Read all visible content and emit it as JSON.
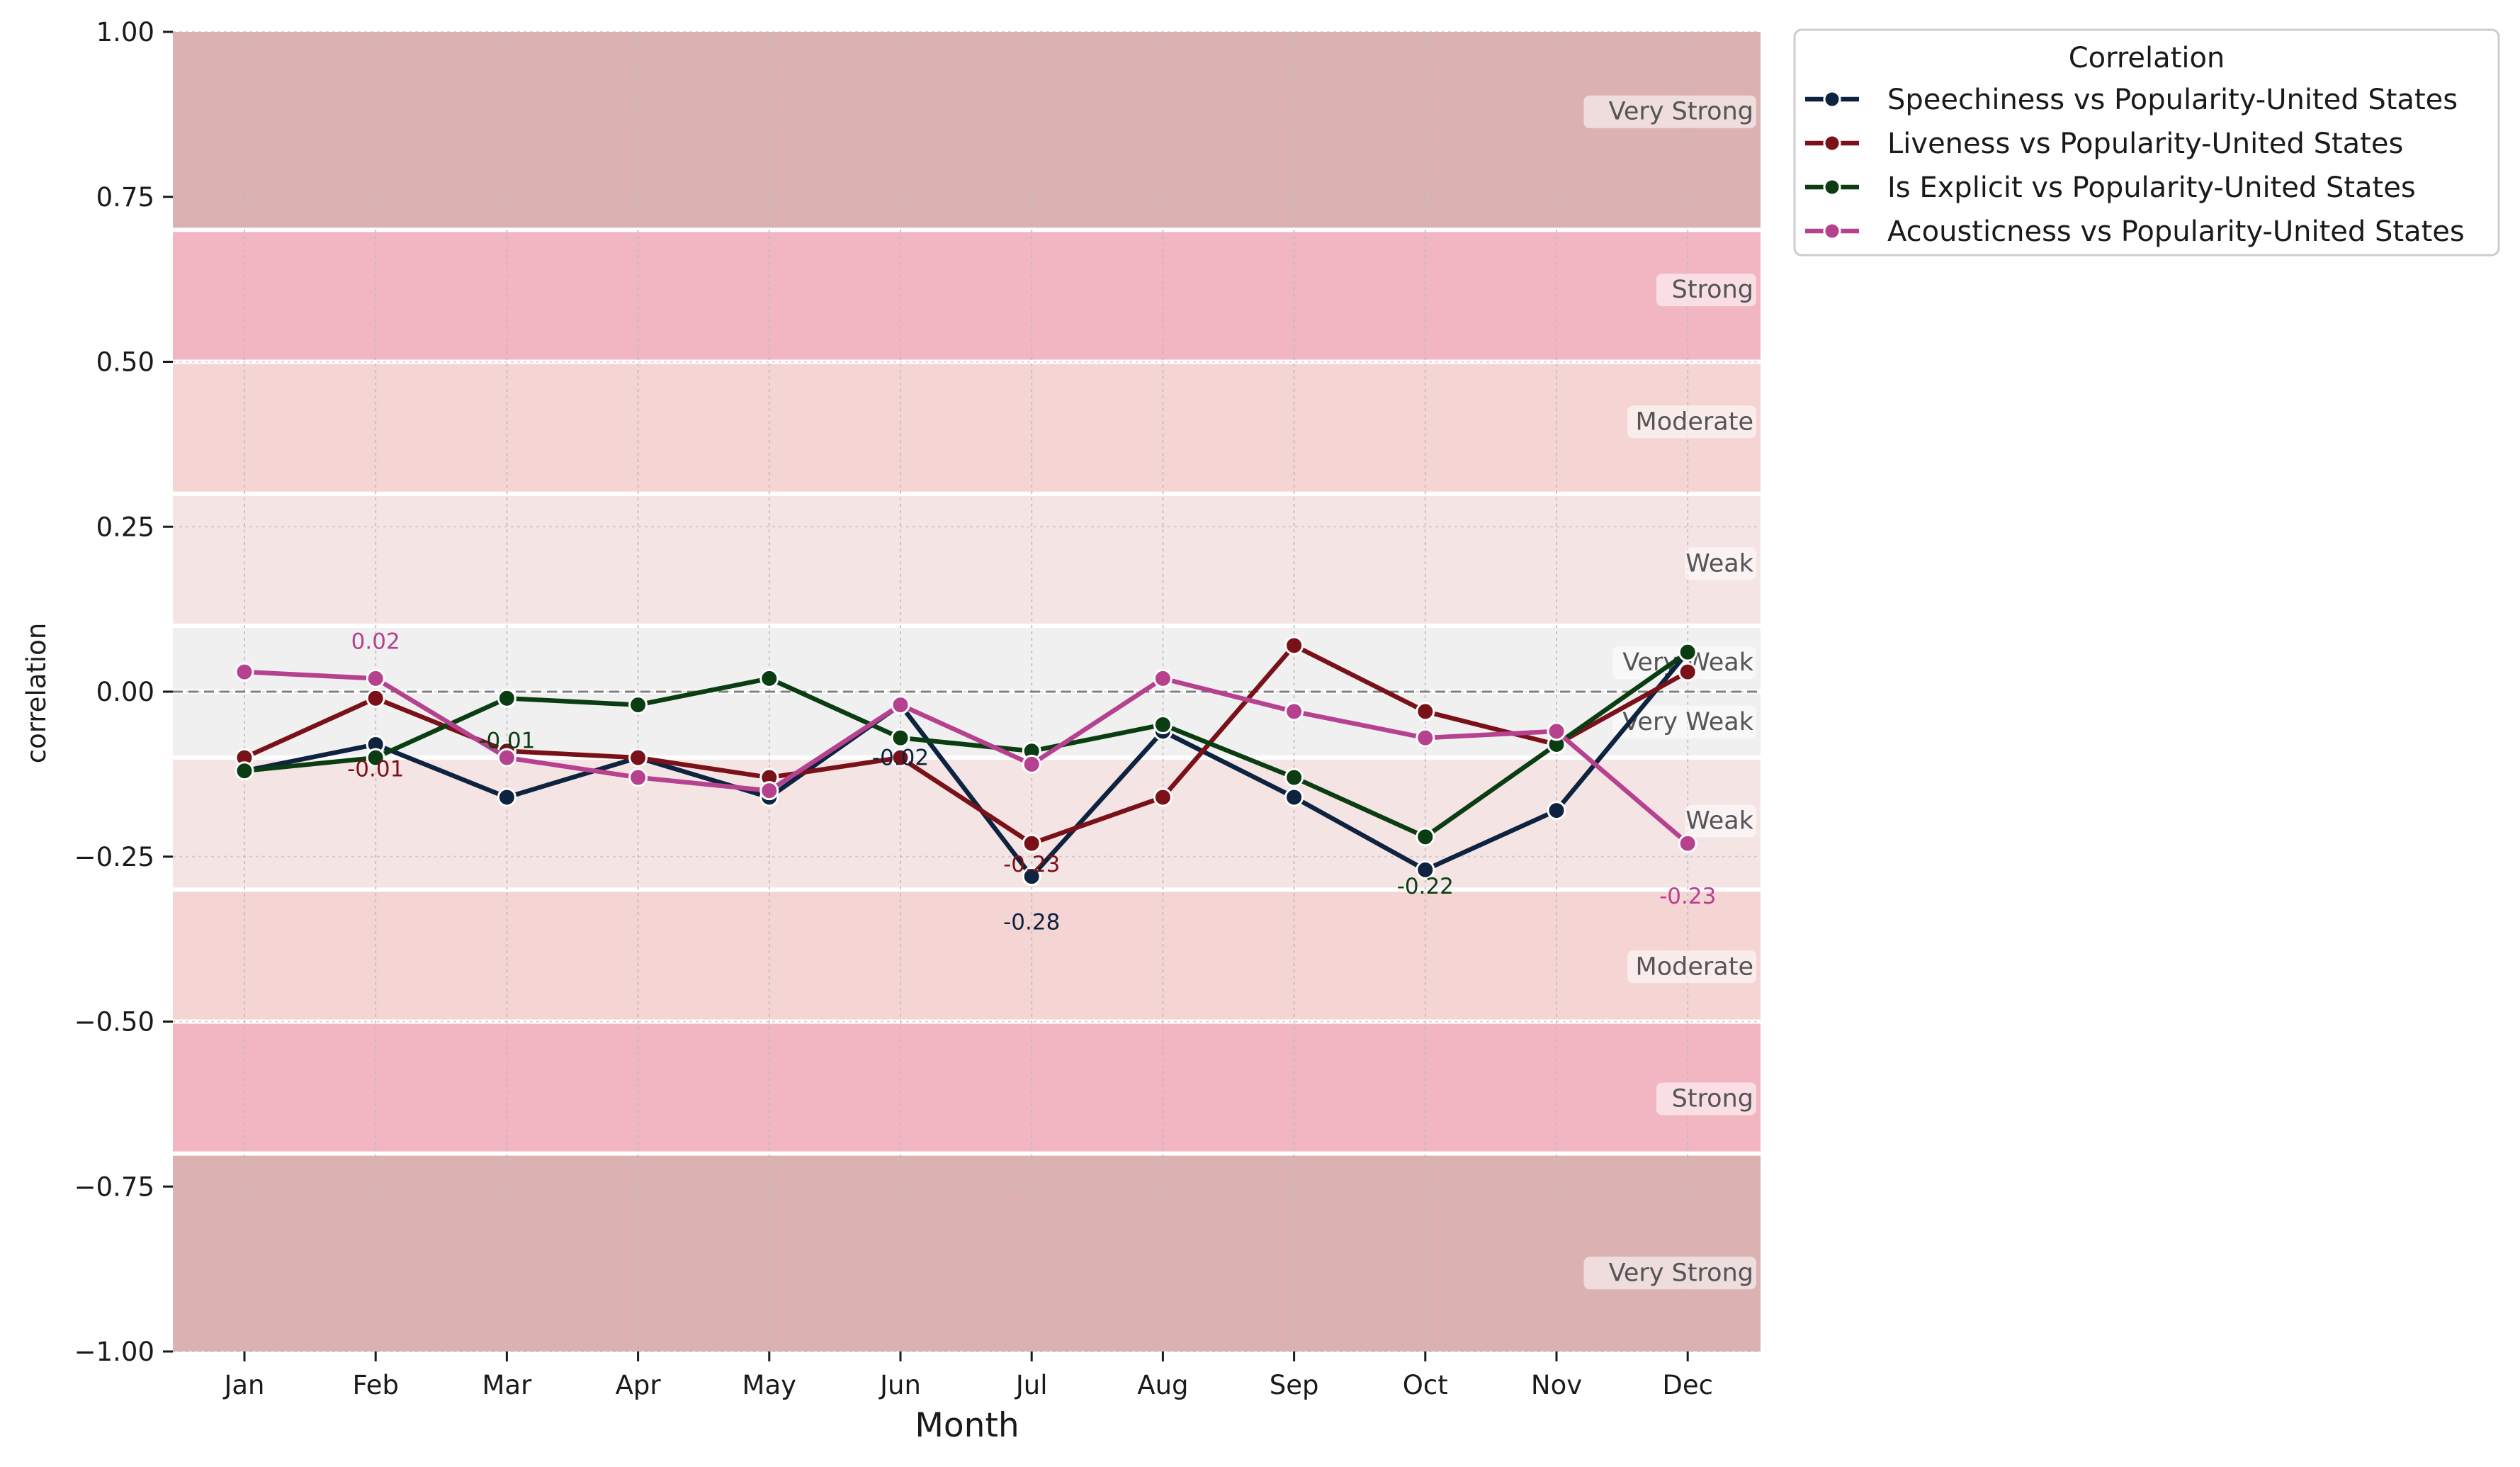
{
  "chart_data": {
    "type": "line",
    "xlabel": "Month",
    "ylabel": "correlation",
    "ylim": [
      -1.0,
      1.0
    ],
    "grid": true,
    "legend_placement": "outside top-right",
    "categories": [
      "Jan",
      "Feb",
      "Mar",
      "Apr",
      "May",
      "Jun",
      "Jul",
      "Aug",
      "Sep",
      "Oct",
      "Nov",
      "Dec"
    ],
    "yticks": [
      "1.00",
      "0.75",
      "0.50",
      "0.25",
      "0.00",
      "−0.25",
      "−0.50",
      "−0.75",
      "−1.00"
    ],
    "ytick_values": [
      1.0,
      0.75,
      0.5,
      0.25,
      0.0,
      -0.25,
      -0.5,
      -0.75,
      -1.0
    ],
    "legend_title": "Correlation",
    "series": [
      {
        "name": "Speechiness vs Popularity-United States",
        "color": "#0d2340",
        "values": [
          -0.12,
          -0.08,
          -0.16,
          -0.1,
          -0.16,
          -0.02,
          -0.28,
          -0.06,
          -0.16,
          -0.27,
          -0.18,
          0.06
        ]
      },
      {
        "name": "Liveness vs Popularity-United States",
        "color": "#7a1118",
        "values": [
          -0.1,
          -0.01,
          -0.09,
          -0.1,
          -0.13,
          -0.1,
          -0.23,
          -0.16,
          0.07,
          -0.03,
          -0.08,
          0.03
        ]
      },
      {
        "name": "Is Explicit vs Popularity-United States",
        "color": "#0b3d12",
        "values": [
          -0.12,
          -0.1,
          -0.01,
          -0.02,
          0.02,
          -0.07,
          -0.09,
          -0.05,
          -0.13,
          -0.22,
          -0.08,
          0.06
        ]
      },
      {
        "name": "Acousticness vs Popularity-United States",
        "color": "#b5418f",
        "values": [
          0.03,
          0.02,
          -0.1,
          -0.13,
          -0.15,
          -0.02,
          -0.11,
          0.02,
          -0.03,
          -0.07,
          -0.06,
          -0.23
        ]
      }
    ],
    "bands": [
      {
        "from": 0.7,
        "to": 1.0,
        "label": "Very Strong",
        "color": "#dbb1b1"
      },
      {
        "from": 0.5,
        "to": 0.7,
        "label": "Strong",
        "color": "#f2b6c3"
      },
      {
        "from": 0.3,
        "to": 0.5,
        "label": "Moderate",
        "color": "#f5d4d4"
      },
      {
        "from": 0.1,
        "to": 0.3,
        "label": "Weak",
        "color": "#f5e4e4"
      },
      {
        "from": 0.0,
        "to": 0.1,
        "label": "Very Weak",
        "color": "#f0f0f0"
      },
      {
        "from": -0.1,
        "to": 0.0,
        "label": "Very Weak",
        "color": "#f0f0f0"
      },
      {
        "from": -0.3,
        "to": -0.1,
        "label": "Weak",
        "color": "#f5e4e4"
      },
      {
        "from": -0.5,
        "to": -0.3,
        "label": "Moderate",
        "color": "#f5d4d4"
      },
      {
        "from": -0.7,
        "to": -0.5,
        "label": "Strong",
        "color": "#f2b6c3"
      },
      {
        "from": -1.0,
        "to": -0.7,
        "label": "Very Strong",
        "color": "#dbb1b1"
      }
    ],
    "annotations": [
      {
        "text": "0.02",
        "x": "Feb",
        "y": 0.02,
        "series": 3
      },
      {
        "text": "-0.01",
        "x": "Feb",
        "y": -0.01,
        "series": 1
      },
      {
        "text": "-0.01",
        "x": "Mar",
        "y": -0.01,
        "series": 2
      },
      {
        "text": "-0.02",
        "x": "Jun",
        "y": -0.02,
        "series": 0
      },
      {
        "text": "-0.23",
        "x": "Jul",
        "y": -0.23,
        "series": 1
      },
      {
        "text": "-0.28",
        "x": "Jul",
        "y": -0.28,
        "series": 0
      },
      {
        "text": "-0.22",
        "x": "Oct",
        "y": -0.22,
        "series": 2
      },
      {
        "text": "-0.23",
        "x": "Dec",
        "y": -0.23,
        "series": 3
      }
    ]
  }
}
